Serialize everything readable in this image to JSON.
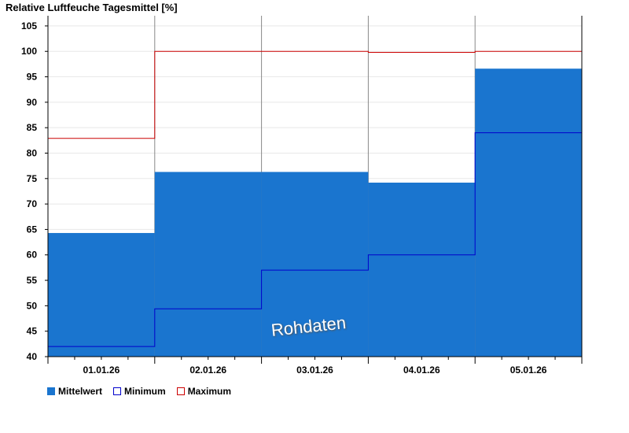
{
  "chart_data": {
    "type": "bar",
    "title": "Relative Luftfeuche Tagesmittel [%]",
    "categories": [
      "01.01.26",
      "02.01.26",
      "03.01.26",
      "04.01.26",
      "05.01.26"
    ],
    "series": [
      {
        "name": "Mittelwert",
        "values": [
          64.3,
          76.3,
          76.3,
          74.2,
          96.6
        ],
        "color": "#1a75cf"
      },
      {
        "name": "Minimum",
        "values": [
          42.0,
          49.4,
          57.0,
          60.0,
          84.0
        ],
        "color": "#0000cc"
      },
      {
        "name": "Maximum",
        "values": [
          82.9,
          100.0,
          100.0,
          99.8,
          100.0
        ],
        "color": "#cc0000"
      }
    ],
    "y_ticks": [
      "40",
      "45",
      "50",
      "55",
      "60",
      "65",
      "70",
      "75",
      "80",
      "85",
      "90",
      "95",
      "100",
      "105"
    ],
    "ylim": [
      40,
      107
    ],
    "xlabel": "",
    "ylabel": "",
    "grid": true,
    "legend_position": "bottom-left"
  },
  "watermark": "Rohdaten"
}
